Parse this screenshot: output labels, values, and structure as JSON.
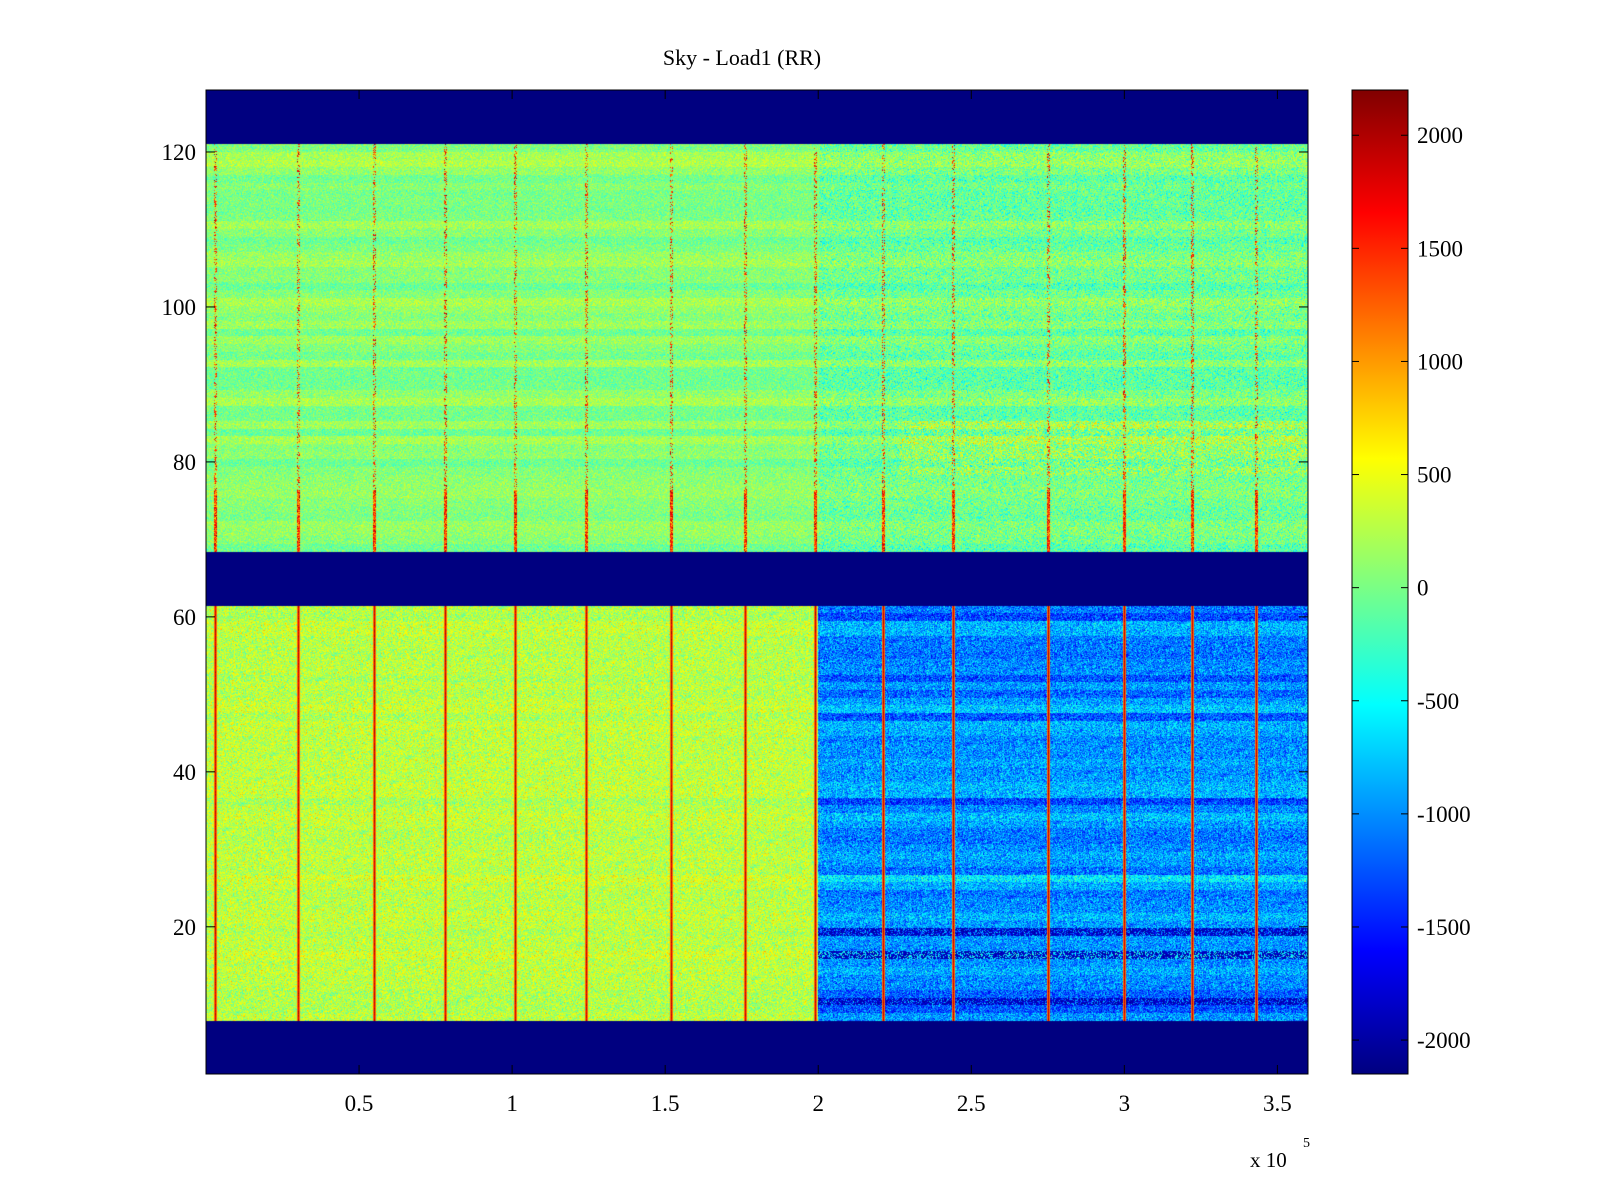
{
  "chart_data": {
    "type": "heatmap",
    "title": "Sky - Load1 (RR)",
    "xlabel": "",
    "ylabel": "",
    "x_ticks": [
      0.5,
      1,
      1.5,
      2,
      2.5,
      3,
      3.5
    ],
    "x_tick_labels": [
      "0.5",
      "1",
      "1.5",
      "2",
      "2.5",
      "3",
      "3.5"
    ],
    "x_exponent_label": "x 10",
    "x_exponent_power": "5",
    "xlim": [
      0,
      3.6
    ],
    "y_ticks": [
      20,
      40,
      60,
      80,
      100,
      120
    ],
    "y_tick_labels": [
      "20",
      "40",
      "60",
      "80",
      "100",
      "120"
    ],
    "ylim": [
      1,
      128
    ],
    "colormap": "jet",
    "clim": [
      -2150,
      2200
    ],
    "colorbar_ticks": [
      2000,
      1500,
      1000,
      500,
      0,
      -500,
      -1000,
      -1500,
      -2000
    ],
    "colorbar_tick_labels": [
      "2000",
      "1500",
      "1000",
      "500",
      "0",
      "-500",
      "-1000",
      "-1500",
      "-2000"
    ],
    "masked_row_bands": [
      [
        1,
        8
      ],
      [
        62,
        69
      ],
      [
        122,
        128
      ]
    ],
    "masked_value": -2150,
    "vertical_spike_x": [
      0.03,
      0.3,
      0.55,
      0.78,
      1.01,
      1.24,
      1.52,
      1.76,
      1.99,
      2.21,
      2.44,
      2.75,
      3.0,
      3.22,
      3.43
    ],
    "regions": [
      {
        "rows": [
          8,
          62
        ],
        "x": [
          0,
          2.0
        ],
        "mean": 300
      },
      {
        "rows": [
          8,
          62
        ],
        "x": [
          2.0,
          3.6
        ],
        "mean": -950
      },
      {
        "rows": [
          69,
          122
        ],
        "x": [
          0,
          3.6
        ],
        "mean": 50
      }
    ]
  }
}
